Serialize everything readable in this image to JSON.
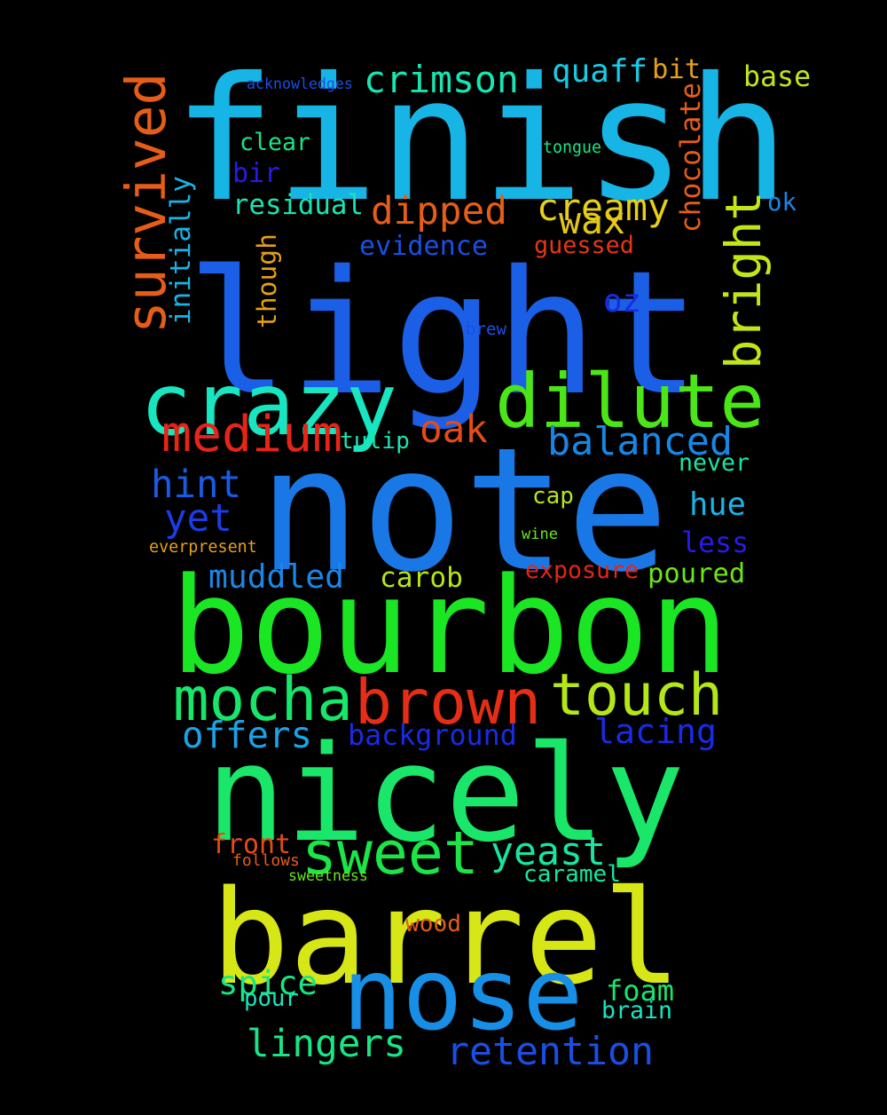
{
  "background": "#000000",
  "words": [
    {
      "text": "finish",
      "color": "#17b4e6"
    },
    {
      "text": "light",
      "color": "#1a5fe6"
    },
    {
      "text": "note",
      "color": "#1a78e6"
    },
    {
      "text": "bourbon",
      "color": "#1ae624"
    },
    {
      "text": "nicely",
      "color": "#1ae66a"
    },
    {
      "text": "barrel",
      "color": "#d6e617"
    },
    {
      "text": "nose",
      "color": "#178fe6"
    },
    {
      "text": "crazy",
      "color": "#17e6c0"
    },
    {
      "text": "dilute",
      "color": "#4be617"
    },
    {
      "text": "survived",
      "color": "#e65d17"
    },
    {
      "text": "brown",
      "color": "#e62e17"
    },
    {
      "text": "mocha",
      "color": "#17e66b"
    },
    {
      "text": "touch",
      "color": "#b5e617"
    },
    {
      "text": "sweet",
      "color": "#1ae647"
    },
    {
      "text": "medium",
      "color": "#e62417"
    },
    {
      "text": "crimson",
      "color": "#17e6b2"
    },
    {
      "text": "bright",
      "color": "#c1e617"
    },
    {
      "text": "dipped",
      "color": "#e65d17"
    },
    {
      "text": "creamy",
      "color": "#e6d017"
    },
    {
      "text": "balanced",
      "color": "#1787e6"
    },
    {
      "text": "oak",
      "color": "#e64b17"
    },
    {
      "text": "hint",
      "color": "#1a5be6"
    },
    {
      "text": "yet",
      "color": "#1a3de6"
    },
    {
      "text": "yeast",
      "color": "#17e6a1"
    },
    {
      "text": "offers",
      "color": "#1aa3e6"
    },
    {
      "text": "lacing",
      "color": "#1a2be6"
    },
    {
      "text": "background",
      "color": "#1a2be6"
    },
    {
      "text": "muddled",
      "color": "#1a87e6"
    },
    {
      "text": "lingers",
      "color": "#17e686"
    },
    {
      "text": "retention",
      "color": "#1a4fe6"
    },
    {
      "text": "quaff",
      "color": "#17cce6"
    },
    {
      "text": "wax",
      "color": "#e6c717"
    },
    {
      "text": "chocolate",
      "color": "#e65d17"
    },
    {
      "text": "initially",
      "color": "#17b4e6"
    },
    {
      "text": "though",
      "color": "#e6a017"
    },
    {
      "text": "residual",
      "color": "#17e6b2"
    },
    {
      "text": "evidence",
      "color": "#1a4fe6"
    },
    {
      "text": "oz",
      "color": "#1a2be6"
    },
    {
      "text": "carob",
      "color": "#b5e617"
    },
    {
      "text": "spice",
      "color": "#17e686"
    },
    {
      "text": "foam",
      "color": "#17e66b"
    },
    {
      "text": "hue",
      "color": "#17b4e6"
    },
    {
      "text": "less",
      "color": "#2a1ae6"
    },
    {
      "text": "poured",
      "color": "#6be617"
    },
    {
      "text": "front",
      "color": "#e64b17"
    },
    {
      "text": "base",
      "color": "#c1e617"
    },
    {
      "text": "bit",
      "color": "#e6a017"
    },
    {
      "text": "guessed",
      "color": "#e63617"
    },
    {
      "text": "exposure",
      "color": "#e62417"
    },
    {
      "text": "clear",
      "color": "#17e686"
    },
    {
      "text": "bir",
      "color": "#2a1ae6"
    },
    {
      "text": "tulip",
      "color": "#17e6b2"
    },
    {
      "text": "cap",
      "color": "#b5e617"
    },
    {
      "text": "caramel",
      "color": "#17e6a1"
    },
    {
      "text": "wood",
      "color": "#e65d17"
    },
    {
      "text": "brain",
      "color": "#17e6c0"
    },
    {
      "text": "pour",
      "color": "#17e6c0"
    },
    {
      "text": "never",
      "color": "#17e6a1"
    },
    {
      "text": "ok",
      "color": "#1a87e6"
    },
    {
      "text": "acknowledges",
      "color": "#1a4fe6"
    },
    {
      "text": "tongue",
      "color": "#17e686"
    },
    {
      "text": "brew",
      "color": "#1a4fe6"
    },
    {
      "text": "everpresent",
      "color": "#e6a017"
    },
    {
      "text": "wine",
      "color": "#6be617"
    },
    {
      "text": "follows",
      "color": "#e65d17"
    },
    {
      "text": "sweetness",
      "color": "#6be617"
    }
  ]
}
